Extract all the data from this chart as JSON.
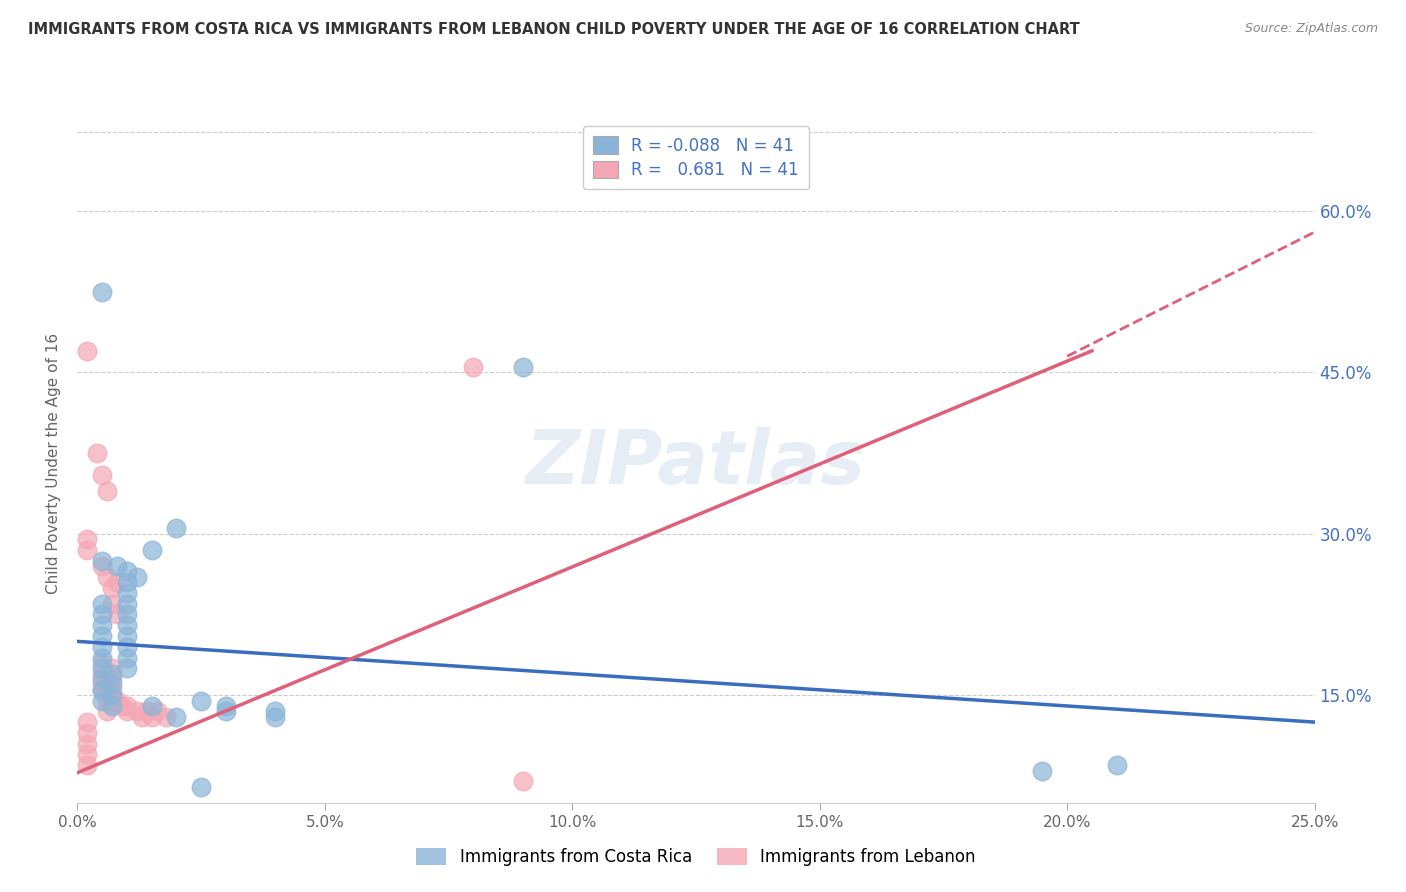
{
  "title": "IMMIGRANTS FROM COSTA RICA VS IMMIGRANTS FROM LEBANON CHILD POVERTY UNDER THE AGE OF 16 CORRELATION CHART",
  "source": "Source: ZipAtlas.com",
  "ylabel_label": "Child Poverty Under the Age of 16",
  "xlim": [
    0.0,
    0.25
  ],
  "ylim": [
    0.05,
    0.68
  ],
  "xtick_vals": [
    0.0,
    0.05,
    0.1,
    0.15,
    0.2,
    0.25
  ],
  "xtick_labels": [
    "0.0%",
    "5.0%",
    "10.0%",
    "15.0%",
    "20.0%",
    "25.0%"
  ],
  "ytick_labels_right": [
    "60.0%",
    "45.0%",
    "30.0%",
    "15.0%"
  ],
  "ytick_vals_right": [
    0.6,
    0.45,
    0.3,
    0.15
  ],
  "costa_rica_color": "#8ab4d8",
  "lebanon_color": "#f4a7b4",
  "costa_rica_R": -0.088,
  "lebanon_R": 0.681,
  "N": 41,
  "legend_label_cr": "Immigrants from Costa Rica",
  "legend_label_lb": "Immigrants from Lebanon",
  "watermark": "ZIPatlas",
  "costa_rica_points": [
    [
      0.005,
      0.525
    ],
    [
      0.02,
      0.305
    ],
    [
      0.005,
      0.275
    ],
    [
      0.008,
      0.27
    ],
    [
      0.01,
      0.265
    ],
    [
      0.012,
      0.26
    ],
    [
      0.01,
      0.255
    ],
    [
      0.01,
      0.245
    ],
    [
      0.015,
      0.285
    ],
    [
      0.005,
      0.235
    ],
    [
      0.005,
      0.225
    ],
    [
      0.01,
      0.235
    ],
    [
      0.01,
      0.225
    ],
    [
      0.01,
      0.215
    ],
    [
      0.005,
      0.215
    ],
    [
      0.005,
      0.205
    ],
    [
      0.01,
      0.205
    ],
    [
      0.01,
      0.195
    ],
    [
      0.005,
      0.195
    ],
    [
      0.005,
      0.185
    ],
    [
      0.01,
      0.185
    ],
    [
      0.01,
      0.175
    ],
    [
      0.005,
      0.175
    ],
    [
      0.005,
      0.165
    ],
    [
      0.007,
      0.17
    ],
    [
      0.007,
      0.16
    ],
    [
      0.005,
      0.155
    ],
    [
      0.005,
      0.145
    ],
    [
      0.007,
      0.15
    ],
    [
      0.007,
      0.14
    ],
    [
      0.015,
      0.14
    ],
    [
      0.02,
      0.13
    ],
    [
      0.025,
      0.145
    ],
    [
      0.03,
      0.14
    ],
    [
      0.03,
      0.135
    ],
    [
      0.04,
      0.135
    ],
    [
      0.04,
      0.13
    ],
    [
      0.09,
      0.455
    ],
    [
      0.195,
      0.08
    ],
    [
      0.21,
      0.085
    ],
    [
      0.025,
      0.065
    ]
  ],
  "lebanon_points": [
    [
      0.002,
      0.47
    ],
    [
      0.004,
      0.375
    ],
    [
      0.002,
      0.295
    ],
    [
      0.002,
      0.285
    ],
    [
      0.005,
      0.355
    ],
    [
      0.006,
      0.34
    ],
    [
      0.005,
      0.27
    ],
    [
      0.006,
      0.26
    ],
    [
      0.007,
      0.25
    ],
    [
      0.008,
      0.255
    ],
    [
      0.007,
      0.235
    ],
    [
      0.008,
      0.225
    ],
    [
      0.005,
      0.18
    ],
    [
      0.005,
      0.17
    ],
    [
      0.005,
      0.16
    ],
    [
      0.005,
      0.155
    ],
    [
      0.006,
      0.165
    ],
    [
      0.006,
      0.155
    ],
    [
      0.006,
      0.145
    ],
    [
      0.006,
      0.135
    ],
    [
      0.007,
      0.175
    ],
    [
      0.007,
      0.165
    ],
    [
      0.007,
      0.155
    ],
    [
      0.007,
      0.145
    ],
    [
      0.008,
      0.145
    ],
    [
      0.009,
      0.14
    ],
    [
      0.01,
      0.14
    ],
    [
      0.01,
      0.135
    ],
    [
      0.012,
      0.135
    ],
    [
      0.013,
      0.13
    ],
    [
      0.014,
      0.135
    ],
    [
      0.015,
      0.13
    ],
    [
      0.016,
      0.135
    ],
    [
      0.018,
      0.13
    ],
    [
      0.002,
      0.125
    ],
    [
      0.002,
      0.115
    ],
    [
      0.002,
      0.105
    ],
    [
      0.002,
      0.095
    ],
    [
      0.002,
      0.085
    ],
    [
      0.08,
      0.455
    ],
    [
      0.09,
      0.07
    ]
  ],
  "blue_line_x": [
    0.0,
    0.25
  ],
  "blue_line_y": [
    0.2,
    0.125
  ],
  "pink_line_x": [
    0.0,
    0.205
  ],
  "pink_line_y": [
    0.078,
    0.47
  ],
  "dashed_line_x": [
    0.2,
    0.252
  ],
  "dashed_line_y": [
    0.465,
    0.585
  ],
  "background_color": "#ffffff",
  "grid_color": "#cccccc",
  "title_color": "#333333"
}
